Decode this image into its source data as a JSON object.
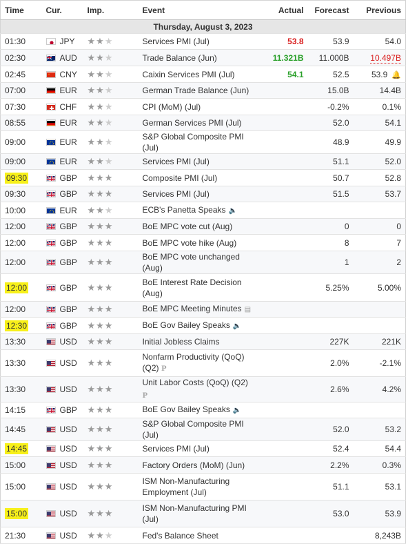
{
  "headers": {
    "time": "Time",
    "cur": "Cur.",
    "imp": "Imp.",
    "event": "Event",
    "actual": "Actual",
    "forecast": "Forecast",
    "previous": "Previous"
  },
  "day_label": "Thursday, August 3, 2023",
  "colors": {
    "highlight": "#f7f01a",
    "green": "#2aa02a",
    "red": "#d91e1e"
  },
  "rows": [
    {
      "time": "01:30",
      "cur": "JPY",
      "flag": "jp",
      "stars": 2,
      "event": "Services PMI (Jul)",
      "actual": "53.8",
      "actual_color": "red",
      "forecast": "53.9",
      "previous": "54.0",
      "h": 23
    },
    {
      "time": "02:30",
      "cur": "AUD",
      "flag": "au",
      "stars": 2,
      "event": "Trade Balance (Jun)",
      "actual": "11.321B",
      "actual_color": "green",
      "forecast": "11.000B",
      "previous": "10.497B",
      "previous_color": "red",
      "h": 24
    },
    {
      "time": "02:45",
      "cur": "CNY",
      "flag": "cn",
      "stars": 2,
      "event": "Caixin Services PMI (Jul)",
      "actual": "54.1",
      "actual_color": "green",
      "forecast": "52.5",
      "previous": "53.9",
      "bell": true,
      "h": 24
    },
    {
      "time": "07:00",
      "cur": "EUR",
      "flag": "de",
      "stars": 2,
      "event": "German Trade Balance (Jun)",
      "actual": "",
      "forecast": "15.0B",
      "previous": "14.4B",
      "h": 23
    },
    {
      "time": "07:30",
      "cur": "CHF",
      "flag": "ch",
      "stars": 2,
      "event": "CPI (MoM) (Jul)",
      "actual": "",
      "forecast": "-0.2%",
      "previous": "0.1%",
      "h": 24
    },
    {
      "time": "08:55",
      "cur": "EUR",
      "flag": "de",
      "stars": 2,
      "event": "German Services PMI (Jul)",
      "actual": "",
      "forecast": "52.0",
      "previous": "54.1",
      "h": 23
    },
    {
      "time": "09:00",
      "cur": "EUR",
      "flag": "eu",
      "stars": 2,
      "event": "S&P Global Composite PMI (Jul)",
      "actual": "",
      "forecast": "48.9",
      "previous": "49.9",
      "h": 24
    },
    {
      "time": "09:00",
      "cur": "EUR",
      "flag": "eu",
      "stars": 2,
      "event": "Services PMI (Jul)",
      "actual": "",
      "forecast": "51.1",
      "previous": "52.0",
      "h": 23
    },
    {
      "time": "09:30",
      "cur": "GBP",
      "flag": "gb",
      "stars": 3,
      "event": "Composite PMI (Jul)",
      "actual": "",
      "forecast": "50.7",
      "previous": "52.8",
      "highlight": true,
      "h": 24
    },
    {
      "time": "09:30",
      "cur": "GBP",
      "flag": "gb",
      "stars": 3,
      "event": "Services PMI (Jul)",
      "actual": "",
      "forecast": "51.5",
      "previous": "53.7",
      "h": 23
    },
    {
      "time": "10:00",
      "cur": "EUR",
      "flag": "eu",
      "stars": 2,
      "event": "ECB's Panetta Speaks",
      "actual": "",
      "forecast": "",
      "previous": "",
      "speech": true,
      "h": 24
    },
    {
      "time": "12:00",
      "cur": "GBP",
      "flag": "gb",
      "stars": 3,
      "event": "BoE MPC vote cut (Aug)",
      "actual": "",
      "forecast": "0",
      "previous": "0",
      "h": 23
    },
    {
      "time": "12:00",
      "cur": "GBP",
      "flag": "gb",
      "stars": 3,
      "event": "BoE MPC vote hike (Aug)",
      "actual": "",
      "forecast": "8",
      "previous": "7",
      "h": 24
    },
    {
      "time": "12:00",
      "cur": "GBP",
      "flag": "gb",
      "stars": 3,
      "event": "BoE MPC vote unchanged (Aug)",
      "actual": "",
      "forecast": "1",
      "previous": "2",
      "h": 23
    },
    {
      "time": "12:00",
      "cur": "GBP",
      "flag": "gb",
      "stars": 3,
      "event": "BoE Interest Rate Decision (Aug)",
      "actual": "",
      "forecast": "5.25%",
      "previous": "5.00%",
      "highlight": true,
      "h": 40
    },
    {
      "time": "12:00",
      "cur": "GBP",
      "flag": "gb",
      "stars": 3,
      "event": "BoE MPC Meeting Minutes",
      "actual": "",
      "forecast": "",
      "previous": "",
      "doc": true,
      "h": 23
    },
    {
      "time": "12:30",
      "cur": "GBP",
      "flag": "gb",
      "stars": 3,
      "event": "BoE Gov Bailey Speaks",
      "actual": "",
      "forecast": "",
      "previous": "",
      "speech": true,
      "highlight": true,
      "h": 24
    },
    {
      "time": "13:30",
      "cur": "USD",
      "flag": "us",
      "stars": 3,
      "event": "Initial Jobless Claims",
      "actual": "",
      "forecast": "227K",
      "previous": "221K",
      "h": 23
    },
    {
      "time": "13:30",
      "cur": "USD",
      "flag": "us",
      "stars": 3,
      "event": "Nonfarm Productivity (QoQ) (Q2)",
      "actual": "",
      "forecast": "2.0%",
      "previous": "-2.1%",
      "prelim": true,
      "h": 39
    },
    {
      "time": "13:30",
      "cur": "USD",
      "flag": "us",
      "stars": 3,
      "event": "Unit Labor Costs (QoQ) (Q2)",
      "actual": "",
      "forecast": "2.6%",
      "previous": "4.2%",
      "prelim": true,
      "h": 24
    },
    {
      "time": "14:15",
      "cur": "GBP",
      "flag": "gb",
      "stars": 3,
      "event": "BoE Gov Bailey Speaks",
      "actual": "",
      "forecast": "",
      "previous": "",
      "speech": true,
      "h": 23
    },
    {
      "time": "14:45",
      "cur": "USD",
      "flag": "us",
      "stars": 3,
      "event": "S&P Global Composite PMI (Jul)",
      "actual": "",
      "forecast": "52.0",
      "previous": "53.2",
      "h": 24
    },
    {
      "time": "14:45",
      "cur": "USD",
      "flag": "us",
      "stars": 3,
      "event": "Services PMI (Jul)",
      "actual": "",
      "forecast": "52.4",
      "previous": "54.4",
      "highlight": true,
      "h": 23
    },
    {
      "time": "15:00",
      "cur": "USD",
      "flag": "us",
      "stars": 3,
      "event": "Factory Orders (MoM) (Jun)",
      "actual": "",
      "forecast": "2.2%",
      "previous": "0.3%",
      "h": 24
    },
    {
      "time": "15:00",
      "cur": "USD",
      "flag": "us",
      "stars": 3,
      "event": "ISM Non-Manufacturing Employment (Jul)",
      "actual": "",
      "forecast": "51.1",
      "previous": "53.1",
      "h": 39
    },
    {
      "time": "15:00",
      "cur": "USD",
      "flag": "us",
      "stars": 3,
      "event": "ISM Non-Manufacturing PMI (Jul)",
      "actual": "",
      "forecast": "53.0",
      "previous": "53.9",
      "highlight": true,
      "h": 39
    },
    {
      "time": "21:30",
      "cur": "USD",
      "flag": "us",
      "stars": 2,
      "event": "Fed's Balance Sheet",
      "actual": "",
      "forecast": "",
      "previous": "8,243B",
      "h": 24
    }
  ]
}
